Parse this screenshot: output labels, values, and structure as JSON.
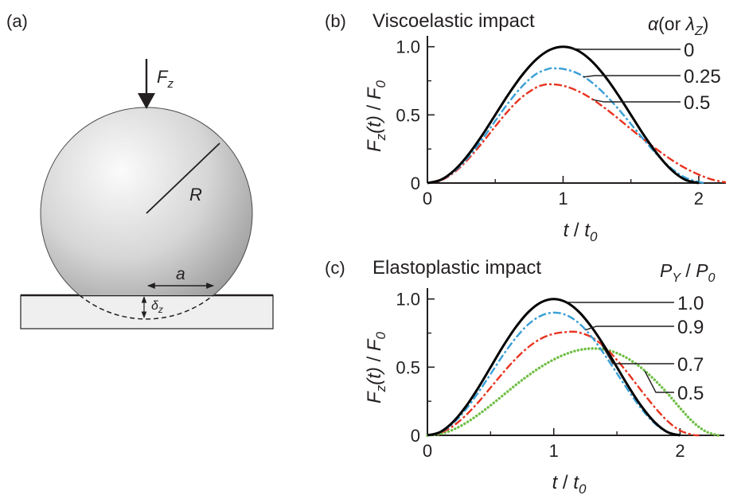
{
  "panels": {
    "a": {
      "label": "(a)",
      "force": {
        "sym": "F",
        "sub": "z"
      },
      "radius": "R",
      "contact_radius": "a",
      "depth": {
        "sym": "δ",
        "sub": "z"
      }
    },
    "b": {
      "label": "(b)",
      "title": "Viscoelastic impact",
      "param": {
        "sym": "α",
        "open": "(or ",
        "sym2": "λ",
        "sub": "Z",
        "close": ")"
      }
    },
    "c": {
      "label": "(c)",
      "title": "Elastoplastic impact",
      "param": {
        "p1": "P",
        "s1": "Y",
        "slash": " / ",
        "p2": "P",
        "s2": "0"
      }
    }
  },
  "axes_text": {
    "ylabel": {
      "F": "F",
      "z": "z",
      "t": "(t)",
      "slash": " / ",
      "F0": "F",
      "zero": "0"
    },
    "xlabel": {
      "t": "t",
      "slash": " / ",
      "t0": "t",
      "zero": "0"
    }
  },
  "colors": {
    "black": "#000000",
    "blue": "#3a9fd6",
    "red": "#e8331f",
    "green": "#6fbe44"
  },
  "chart_data": [
    {
      "id": "b",
      "type": "line",
      "title": "Viscoelastic impact",
      "xlim": [
        0,
        2.2
      ],
      "ylim": [
        0,
        1.08
      ],
      "xticks": [
        0,
        1,
        2
      ],
      "xtick_labels": [
        "0",
        "1",
        "2"
      ],
      "yticks": [
        0,
        0.5,
        1.0
      ],
      "ytick_labels": [
        "0",
        "0.5",
        "1.0"
      ],
      "minor_x": [
        0.5,
        1.5
      ],
      "minor_y": [
        0.25,
        0.75
      ],
      "series": [
        {
          "name": "0",
          "color": "#000000",
          "style": "solid",
          "x": [
            0,
            0.1,
            0.2,
            0.3,
            0.4,
            0.5,
            0.6,
            0.7,
            0.8,
            0.9,
            1.0,
            1.1,
            1.2,
            1.3,
            1.4,
            1.5,
            1.6,
            1.7,
            1.8,
            1.9,
            2.0
          ],
          "y": [
            0,
            0.024,
            0.095,
            0.206,
            0.345,
            0.5,
            0.655,
            0.794,
            0.905,
            0.976,
            1.0,
            0.976,
            0.905,
            0.794,
            0.655,
            0.5,
            0.345,
            0.206,
            0.095,
            0.024,
            0
          ]
        },
        {
          "name": "0.25",
          "color": "#3a9fd6",
          "style": "dashdot",
          "x": [
            0,
            0.1,
            0.2,
            0.3,
            0.4,
            0.5,
            0.6,
            0.7,
            0.8,
            0.9,
            0.95,
            1.0,
            1.1,
            1.2,
            1.3,
            1.4,
            1.5,
            1.6,
            1.7,
            1.8,
            1.9,
            2.0,
            2.05
          ],
          "y": [
            0,
            0.022,
            0.087,
            0.188,
            0.315,
            0.456,
            0.593,
            0.711,
            0.799,
            0.84,
            0.84,
            0.837,
            0.808,
            0.747,
            0.659,
            0.552,
            0.433,
            0.313,
            0.2,
            0.106,
            0.04,
            0.008,
            0
          ]
        },
        {
          "name": "0.5",
          "color": "#e8331f",
          "style": "dashdot",
          "x": [
            0,
            0.1,
            0.2,
            0.3,
            0.4,
            0.5,
            0.6,
            0.7,
            0.8,
            0.85,
            0.9,
            1.0,
            1.1,
            1.2,
            1.3,
            1.4,
            1.5,
            1.6,
            1.7,
            1.8,
            1.9,
            2.0,
            2.1,
            2.2
          ],
          "y": [
            0,
            0.02,
            0.08,
            0.175,
            0.29,
            0.415,
            0.535,
            0.633,
            0.7,
            0.718,
            0.725,
            0.714,
            0.679,
            0.625,
            0.556,
            0.478,
            0.396,
            0.316,
            0.24,
            0.17,
            0.11,
            0.062,
            0.025,
            0.005
          ]
        }
      ]
    },
    {
      "id": "c",
      "type": "line",
      "title": "Elastoplastic impact",
      "xlim": [
        0,
        2.35
      ],
      "ylim": [
        0,
        1.08
      ],
      "xticks": [
        0,
        1,
        2
      ],
      "xtick_labels": [
        "0",
        "1",
        "2"
      ],
      "yticks": [
        0,
        0.5,
        1.0
      ],
      "ytick_labels": [
        "0",
        "0.5",
        "1.0"
      ],
      "minor_x": [
        0.5,
        1.5
      ],
      "minor_y": [
        0.25,
        0.75
      ],
      "series": [
        {
          "name": "1.0",
          "color": "#000000",
          "style": "solid",
          "x": [
            0,
            0.1,
            0.2,
            0.3,
            0.4,
            0.5,
            0.6,
            0.7,
            0.8,
            0.9,
            1.0,
            1.1,
            1.2,
            1.3,
            1.4,
            1.5,
            1.6,
            1.7,
            1.8,
            1.9,
            2.0
          ],
          "y": [
            0,
            0.024,
            0.095,
            0.206,
            0.345,
            0.5,
            0.655,
            0.794,
            0.905,
            0.976,
            1.0,
            0.976,
            0.905,
            0.794,
            0.655,
            0.5,
            0.345,
            0.206,
            0.095,
            0.024,
            0
          ]
        },
        {
          "name": "0.9",
          "color": "#3a9fd6",
          "style": "dashdot",
          "x": [
            0,
            0.1,
            0.2,
            0.3,
            0.4,
            0.5,
            0.6,
            0.7,
            0.8,
            0.9,
            1.0,
            1.1,
            1.2,
            1.3,
            1.4,
            1.5,
            1.6,
            1.7,
            1.8,
            1.9,
            2.0
          ],
          "y": [
            0,
            0.021,
            0.085,
            0.185,
            0.311,
            0.45,
            0.59,
            0.715,
            0.815,
            0.878,
            0.9,
            0.882,
            0.822,
            0.723,
            0.595,
            0.455,
            0.315,
            0.188,
            0.087,
            0.022,
            0
          ]
        },
        {
          "name": "0.7",
          "color": "#e8331f",
          "style": "dashdot",
          "x": [
            0,
            0.1,
            0.2,
            0.3,
            0.4,
            0.5,
            0.6,
            0.7,
            0.8,
            0.9,
            1.0,
            1.1,
            1.15,
            1.2,
            1.3,
            1.4,
            1.5,
            1.6,
            1.7,
            1.8,
            1.9,
            2.0,
            2.1,
            2.15
          ],
          "y": [
            0,
            0.017,
            0.066,
            0.143,
            0.24,
            0.35,
            0.46,
            0.562,
            0.648,
            0.71,
            0.745,
            0.758,
            0.76,
            0.755,
            0.72,
            0.65,
            0.553,
            0.44,
            0.32,
            0.205,
            0.105,
            0.035,
            0.004,
            0
          ]
        },
        {
          "name": "0.5",
          "color": "#6fbe44",
          "style": "dotted",
          "x": [
            0,
            0.1,
            0.2,
            0.3,
            0.4,
            0.5,
            0.6,
            0.7,
            0.8,
            0.9,
            1.0,
            1.1,
            1.2,
            1.3,
            1.4,
            1.5,
            1.6,
            1.7,
            1.8,
            1.9,
            2.0,
            2.1,
            2.2,
            2.3
          ],
          "y": [
            0,
            0.01,
            0.04,
            0.088,
            0.15,
            0.22,
            0.295,
            0.37,
            0.44,
            0.503,
            0.556,
            0.598,
            0.626,
            0.637,
            0.63,
            0.603,
            0.556,
            0.49,
            0.405,
            0.308,
            0.2,
            0.1,
            0.03,
            0
          ]
        }
      ]
    }
  ]
}
